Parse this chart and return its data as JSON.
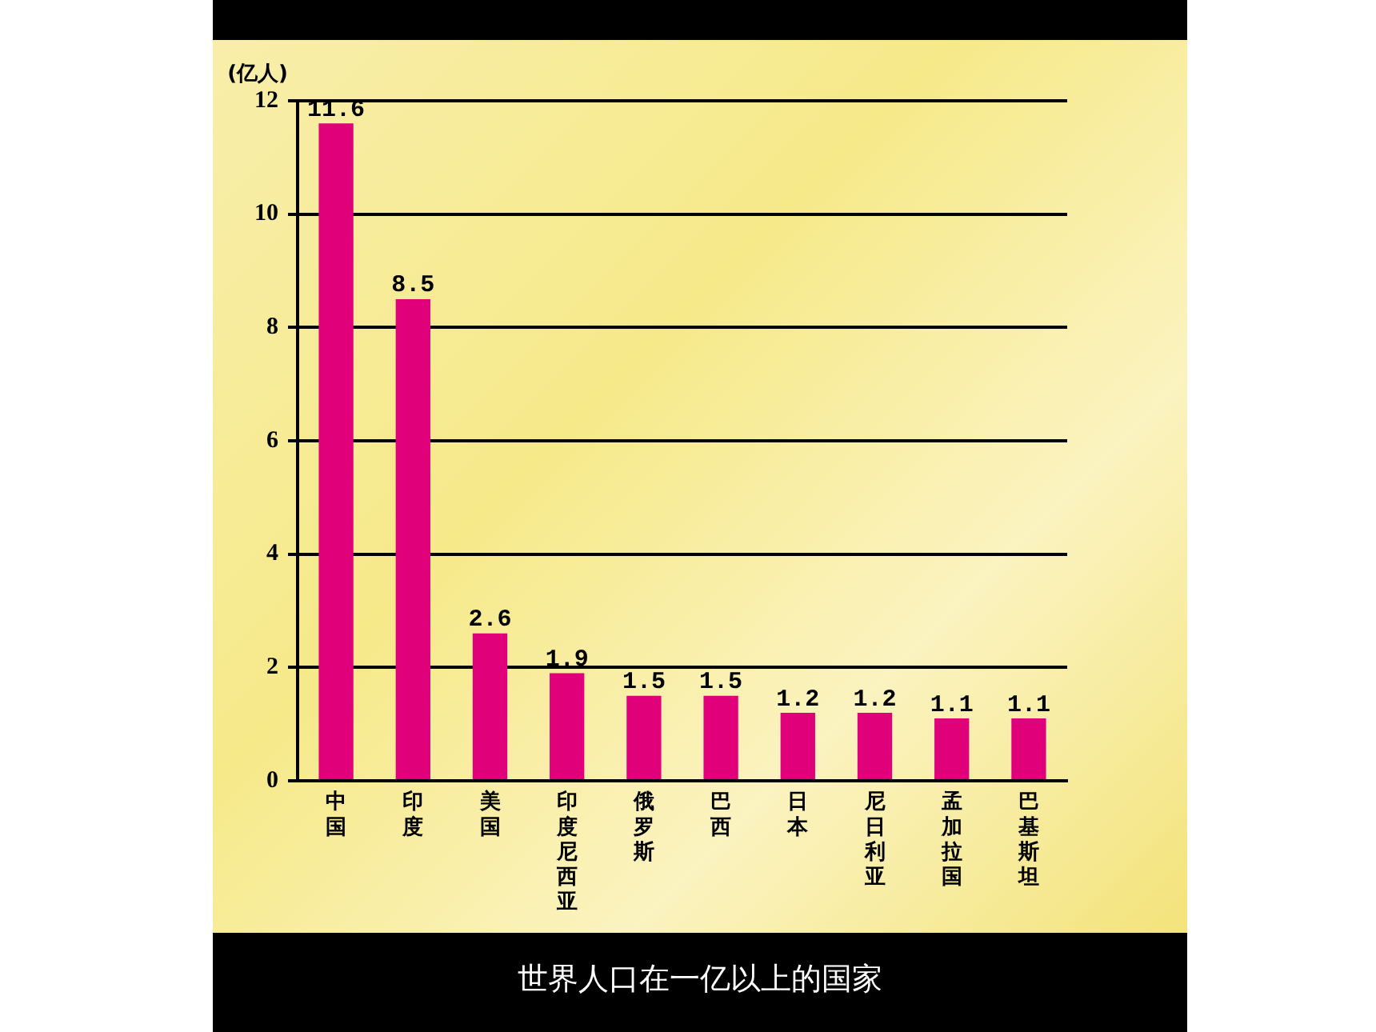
{
  "chart_data": {
    "type": "bar",
    "title": "世界人口在一亿以上的国家",
    "ylabel": "(亿人)",
    "categories": [
      "中国",
      "印度",
      "美国",
      "印度尼西亚",
      "俄罗斯",
      "巴西",
      "日本",
      "尼日利亚",
      "孟加拉国",
      "巴基斯坦"
    ],
    "values": [
      11.6,
      8.5,
      2.6,
      1.9,
      1.5,
      1.5,
      1.2,
      1.2,
      1.1,
      1.1
    ],
    "color": "#e0007a",
    "ylim": [
      0,
      12
    ],
    "yticks": [
      0,
      2,
      4,
      6,
      8,
      10,
      12
    ],
    "grid": "y",
    "data_labels": true
  }
}
